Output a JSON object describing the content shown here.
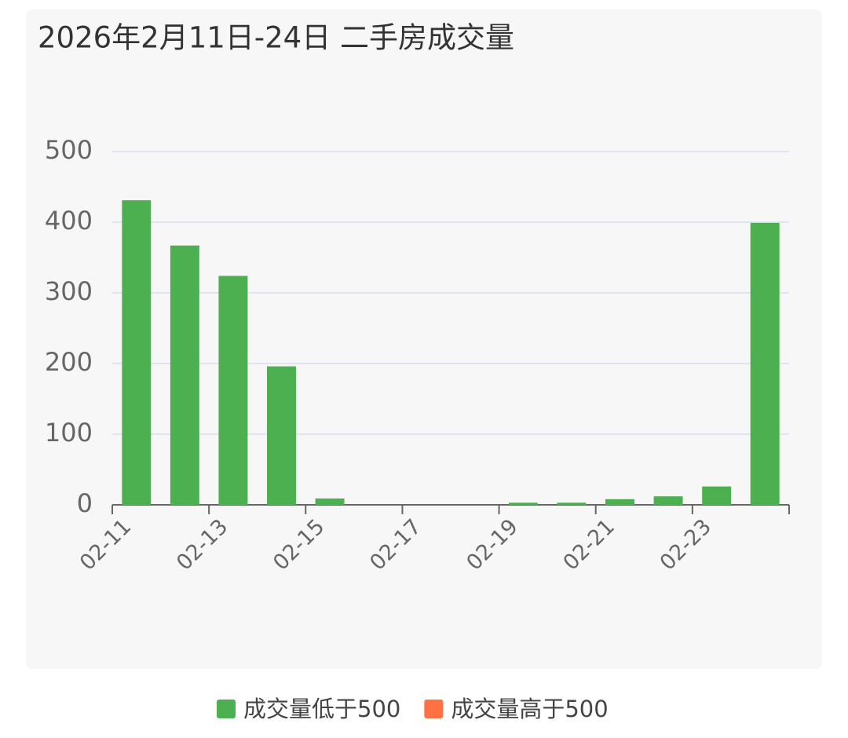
{
  "chart_data": {
    "type": "bar",
    "title": "2026年2月11日-24日 二手房成交量",
    "categories": [
      "02-11",
      null,
      "02-13",
      null,
      "02-15",
      null,
      "02-17",
      null,
      "02-19",
      null,
      "02-21",
      null,
      "02-23",
      null
    ],
    "series": [
      {
        "name": "成交量低于500",
        "color": "#4caf50",
        "values": [
          431,
          367,
          324,
          196,
          9,
          0,
          0,
          0,
          3,
          3,
          8,
          12,
          26,
          399
        ]
      },
      {
        "name": "成交量高于500",
        "color": "#ff7043",
        "values": [
          null,
          null,
          null,
          null,
          null,
          null,
          null,
          null,
          null,
          null,
          null,
          null,
          null,
          null
        ]
      }
    ],
    "ylim": [
      0,
      500
    ],
    "yticks": [
      0,
      100,
      200,
      300,
      400,
      500
    ],
    "grid": true
  }
}
